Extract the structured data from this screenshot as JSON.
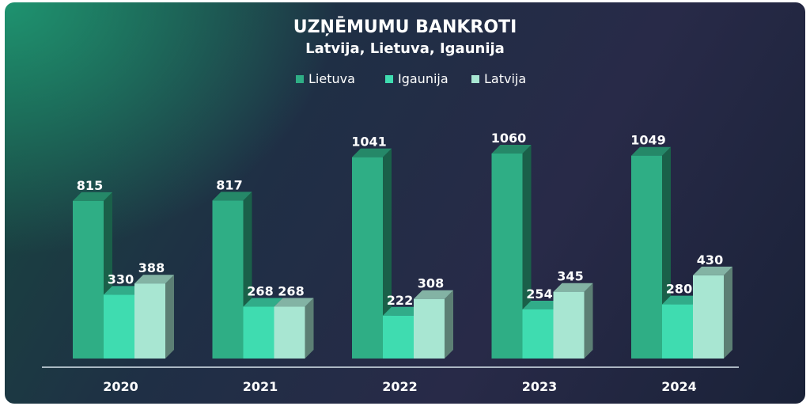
{
  "chart_data": {
    "type": "bar",
    "title": "UZŅĒMUMU BANKROTI",
    "subtitle": "Latvija, Lietuva, Igaunija",
    "categories": [
      "2020",
      "2021",
      "2022",
      "2023",
      "2024"
    ],
    "series": [
      {
        "name": "Lietuva",
        "values": [
          815,
          817,
          1041,
          1060,
          1049
        ],
        "color": "#2fae85"
      },
      {
        "name": "Igaunija",
        "values": [
          330,
          268,
          222,
          254,
          280
        ],
        "color": "#3fdcb0"
      },
      {
        "name": "Latvija",
        "values": [
          388,
          268,
          308,
          345,
          430
        ],
        "color": "#a8e6d2"
      }
    ],
    "ylim": [
      0,
      1060
    ],
    "legend_position": "top-center",
    "grid": false,
    "colors": {
      "text": "#ffffff",
      "axis_line": "#d9e6ee"
    }
  }
}
